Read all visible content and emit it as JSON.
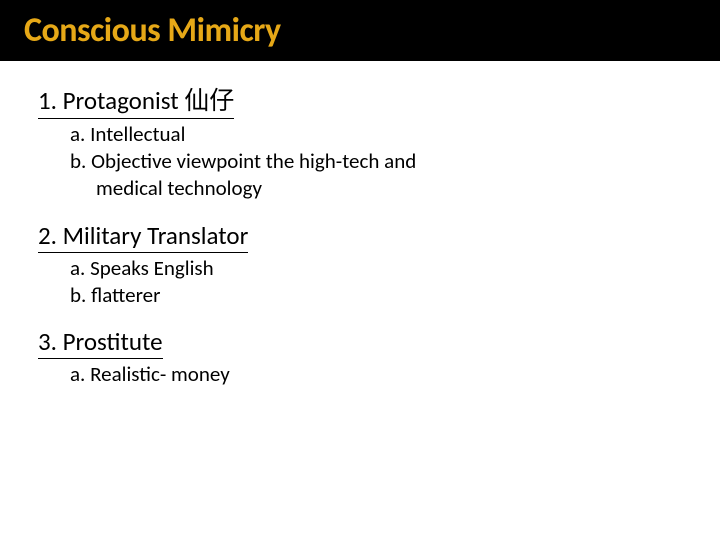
{
  "title": "Conscious Mimicry",
  "items": [
    {
      "heading": "1. Protagonist 仙仔",
      "subs": [
        " a. Intellectual",
        "b. Objective viewpoint the high-tech and",
        "medical technology"
      ],
      "cont_idx": [
        2
      ]
    },
    {
      "heading": "2. Military Translator",
      "subs": [
        " a. Speaks English",
        "b. flatterer"
      ],
      "cont_idx": []
    },
    {
      "heading": "3. Prostitute",
      "subs": [
        "a. Realistic- money"
      ],
      "cont_idx": []
    }
  ],
  "colors": {
    "title_color": "#e6a817",
    "header_bg": "#000000",
    "text_color": "#000000",
    "background": "#ffffff"
  },
  "typography": {
    "title_fontsize": 34,
    "heading_fontsize": 25,
    "sub_fontsize": 21
  }
}
